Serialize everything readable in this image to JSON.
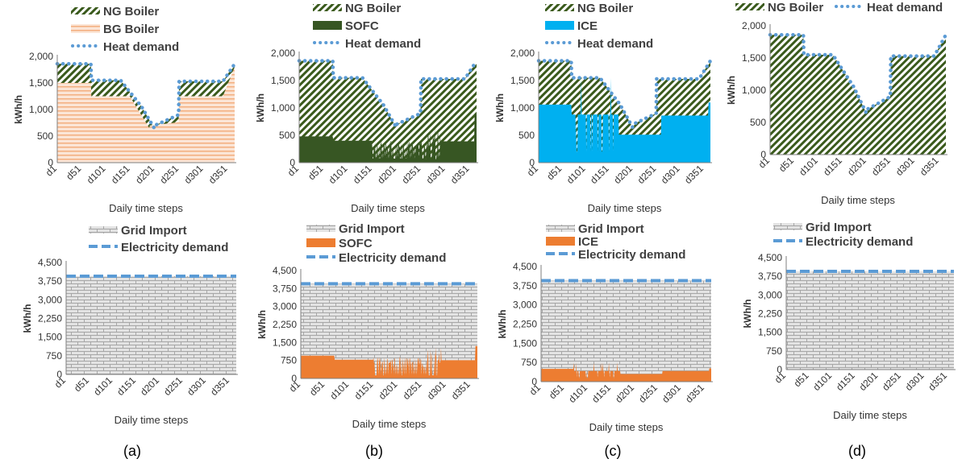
{
  "colors": {
    "ng_boiler": "#3a5a1c",
    "bg_boiler": "#f4b183",
    "sofc_heat": "#375623",
    "ice_heat": "#00b0f0",
    "grid_fill": "#d9d9d9",
    "grid_brick": "#a6a6a6",
    "elec_gen": "#ed7d31",
    "demand": "#5b9bd5"
  },
  "panel_labels": [
    "(a)",
    "(b)",
    "(c)",
    "(d)"
  ],
  "chart_data": [
    {
      "id": "a-heat",
      "type": "area",
      "xlabel": "Daily time steps",
      "ylabel": "kWh/h",
      "ylim": [
        0,
        2000
      ],
      "yticks": [
        "0",
        "500",
        "1,000",
        "1,500",
        "2,000"
      ],
      "xticks": [
        "d1",
        "d51",
        "d101",
        "d151",
        "d201",
        "d251",
        "d301",
        "d351"
      ],
      "legend": [
        "NG Boiler",
        "BG Boiler",
        "Heat demand"
      ],
      "series": [
        {
          "name": "BG Boiler",
          "segments": [
            [
              1,
              70,
              1500
            ],
            [
              71,
              150,
              1250
            ],
            [
              151,
              190,
              "linear",
              1230,
              650
            ],
            [
              191,
              250,
              "linear",
              700,
              760
            ],
            [
              251,
              340,
              1250
            ],
            [
              341,
              365,
              "linear",
              1250,
              1800
            ]
          ]
        },
        {
          "name": "Heat demand",
          "segments": [
            [
              1,
              70,
              1860
            ],
            [
              71,
              130,
              1550
            ],
            [
              131,
              170,
              "linear",
              1550,
              1100
            ],
            [
              171,
              200,
              "linear",
              1100,
              650
            ],
            [
              201,
              250,
              "linear",
              700,
              900
            ],
            [
              251,
              340,
              1530
            ],
            [
              341,
              365,
              "linear",
              1530,
              1860
            ]
          ]
        }
      ]
    },
    {
      "id": "b-heat",
      "type": "area",
      "xlabel": "Daily time steps",
      "ylabel": "kWh/h",
      "ylim": [
        0,
        2000
      ],
      "yticks": [
        "0",
        "500",
        "1,000",
        "1,500",
        "2,000"
      ],
      "xticks": [
        "d1",
        "d51",
        "d101",
        "d151",
        "d201",
        "d251",
        "d301",
        "d351"
      ],
      "legend": [
        "NG Boiler",
        "SOFC",
        "Heat demand"
      ],
      "series": [
        {
          "name": "SOFC",
          "segments": [
            [
              1,
              70,
              480
            ],
            [
              71,
              150,
              400
            ],
            [
              151,
              260,
              "noisy",
              250,
              400
            ],
            [
              261,
              290,
              "noisy",
              200,
              650
            ],
            [
              291,
              360,
              390
            ],
            [
              361,
              365,
              900
            ]
          ]
        },
        {
          "name": "Heat demand",
          "segments": [
            [
              1,
              70,
              1860
            ],
            [
              71,
              130,
              1550
            ],
            [
              131,
              170,
              "linear",
              1550,
              1100
            ],
            [
              171,
              200,
              "linear",
              1100,
              650
            ],
            [
              201,
              250,
              "linear",
              700,
              900
            ],
            [
              251,
              340,
              1530
            ],
            [
              341,
              365,
              "linear",
              1530,
              1860
            ]
          ]
        }
      ]
    },
    {
      "id": "c-heat",
      "type": "area",
      "xlabel": "Daily time steps",
      "ylabel": "kWh/h",
      "ylim": [
        0,
        2000
      ],
      "yticks": [
        "0",
        "500",
        "1,000",
        "1,500",
        "2,000"
      ],
      "xticks": [
        "d1",
        "d51",
        "d101",
        "d151",
        "d201",
        "d251",
        "d301",
        "d351"
      ],
      "legend": [
        "NG Boiler",
        "ICE",
        "Heat demand"
      ],
      "series": [
        {
          "name": "ICE",
          "segments": [
            [
              1,
              70,
              1060
            ],
            [
              71,
              170,
              "spiky",
              880,
              200,
              1550
            ],
            [
              171,
              260,
              510
            ],
            [
              261,
              360,
              860
            ],
            [
              361,
              365,
              1100
            ]
          ]
        },
        {
          "name": "Heat demand",
          "segments": [
            [
              1,
              70,
              1860
            ],
            [
              71,
              130,
              1550
            ],
            [
              131,
              170,
              "linear",
              1550,
              1100
            ],
            [
              171,
              200,
              "linear",
              1100,
              650
            ],
            [
              201,
              250,
              "linear",
              700,
              900
            ],
            [
              251,
              340,
              1530
            ],
            [
              341,
              365,
              "linear",
              1530,
              1860
            ]
          ]
        }
      ]
    },
    {
      "id": "d-heat",
      "type": "area",
      "xlabel": "Daily time steps",
      "ylabel": "kWh/h",
      "ylim": [
        0,
        2000
      ],
      "yticks": [
        "0",
        "500",
        "1,000",
        "1,500",
        "2,000"
      ],
      "xticks": [
        "d1",
        "d51",
        "d101",
        "d151",
        "d201",
        "d251",
        "d301",
        "d351"
      ],
      "legend": [
        "NG Boiler",
        "Heat demand"
      ],
      "series": [
        {
          "name": "Heat demand",
          "segments": [
            [
              1,
              70,
              1860
            ],
            [
              71,
              130,
              1550
            ],
            [
              131,
              170,
              "linear",
              1550,
              1100
            ],
            [
              171,
              200,
              "linear",
              1100,
              650
            ],
            [
              201,
              250,
              "linear",
              700,
              900
            ],
            [
              251,
              340,
              1530
            ],
            [
              341,
              365,
              "linear",
              1530,
              1860
            ]
          ]
        }
      ]
    },
    {
      "id": "a-elec",
      "type": "area",
      "xlabel": "Daily time steps",
      "ylabel": "kWh/h",
      "ylim": [
        0,
        4500
      ],
      "yticks": [
        "0",
        "750",
        "1,500",
        "2,250",
        "3,000",
        "3,750",
        "4,500"
      ],
      "xticks": [
        "d1",
        "d51",
        "d101",
        "d151",
        "d201",
        "d251",
        "d301",
        "d351"
      ],
      "legend": [
        "Grid Import",
        "Electricity demand"
      ],
      "series": [
        {
          "name": "Electricity demand",
          "segments": [
            [
              1,
              365,
              3950
            ]
          ]
        }
      ]
    },
    {
      "id": "b-elec",
      "type": "area",
      "xlabel": "Daily time steps",
      "ylabel": "kWh/h",
      "ylim": [
        0,
        4500
      ],
      "yticks": [
        "0",
        "750",
        "1,500",
        "2,250",
        "3,000",
        "3,750",
        "4,500"
      ],
      "xticks": [
        "d1",
        "d51",
        "d101",
        "d151",
        "d201",
        "d251",
        "d301",
        "d351"
      ],
      "legend": [
        "Grid Import",
        "SOFC",
        "Electricity demand"
      ],
      "series": [
        {
          "name": "SOFC",
          "segments": [
            [
              1,
              70,
              950
            ],
            [
              71,
              150,
              780
            ],
            [
              151,
              260,
              "noisy",
              450,
              900
            ],
            [
              261,
              290,
              "noisy",
              450,
              1300
            ],
            [
              291,
              360,
              760
            ],
            [
              361,
              365,
              1350
            ]
          ]
        },
        {
          "name": "Electricity demand",
          "segments": [
            [
              1,
              365,
              3950
            ]
          ]
        }
      ]
    },
    {
      "id": "c-elec",
      "type": "area",
      "xlabel": "Daily time steps",
      "ylabel": "kWh/h",
      "ylim": [
        0,
        4500
      ],
      "yticks": [
        "0",
        "750",
        "1,500",
        "2,250",
        "3,000",
        "3,750",
        "4,500"
      ],
      "xticks": [
        "d1",
        "d51",
        "d101",
        "d151",
        "d201",
        "d251",
        "d301",
        "d351"
      ],
      "legend": [
        "Grid Import",
        "ICE",
        "Electricity demand"
      ],
      "series": [
        {
          "name": "ICE",
          "segments": [
            [
              1,
              70,
              500
            ],
            [
              71,
              170,
              "spiky",
              420,
              150,
              750
            ],
            [
              171,
              260,
              300
            ],
            [
              261,
              360,
              420
            ],
            [
              361,
              365,
              520
            ]
          ]
        },
        {
          "name": "Electricity demand",
          "segments": [
            [
              1,
              365,
              3950
            ]
          ]
        }
      ]
    },
    {
      "id": "d-elec",
      "type": "area",
      "xlabel": "Daily time steps",
      "ylabel": "kWh/h",
      "ylim": [
        0,
        4500
      ],
      "yticks": [
        "0",
        "750",
        "1,500",
        "2,250",
        "3,000",
        "3,750",
        "4,500"
      ],
      "xticks": [
        "d1",
        "d51",
        "d101",
        "d151",
        "d201",
        "d251",
        "d301",
        "d351"
      ],
      "legend": [
        "Grid Import",
        "Electricity demand"
      ],
      "series": [
        {
          "name": "Electricity demand",
          "segments": [
            [
              1,
              365,
              3950
            ]
          ]
        }
      ]
    }
  ]
}
